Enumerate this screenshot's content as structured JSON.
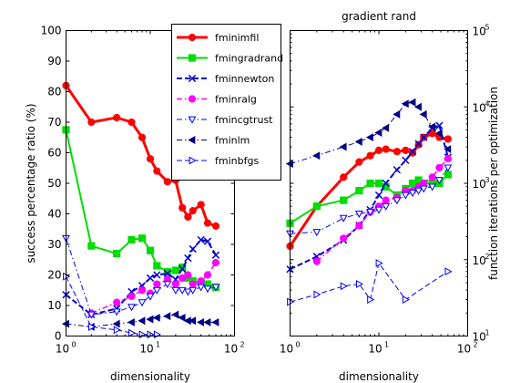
{
  "chart_data": [
    {
      "type": "line",
      "title": "",
      "xlabel": "dimensionality",
      "ylabel": "success percentage ratio (%)",
      "x_scale": "log",
      "xlim": [
        1,
        100
      ],
      "ylim": [
        0,
        100
      ],
      "x_ticks": [
        1,
        10,
        100
      ],
      "y_ticks": [
        0,
        10,
        20,
        30,
        40,
        50,
        60,
        70,
        80,
        90,
        100
      ],
      "y_tick_labels": [
        "0",
        "10",
        "20",
        "30",
        "40",
        "50",
        "60",
        "70",
        "80",
        "90",
        "100"
      ],
      "grid": false,
      "legend_position": "top-right",
      "series": [
        {
          "name": "fminimfil",
          "color": "#ff0000",
          "marker": "circle",
          "dash": "solid",
          "width": 3,
          "x": [
            1,
            2,
            4,
            6,
            8,
            10,
            12,
            16,
            20,
            24,
            28,
            32,
            40,
            48,
            60
          ],
          "y": [
            82,
            70,
            71.5,
            70,
            65,
            58,
            54,
            50.5,
            51,
            42,
            39,
            41,
            43,
            37,
            36
          ]
        },
        {
          "name": "fmingradrand",
          "color": "#00dd00",
          "marker": "square",
          "dash": "solid",
          "width": 2,
          "x": [
            1,
            2,
            4,
            6,
            8,
            10,
            12,
            16,
            20,
            24,
            28,
            32,
            40,
            48,
            60
          ],
          "y": [
            67.5,
            29.5,
            27,
            31.5,
            32,
            28,
            23,
            21,
            21.5,
            22.5,
            19,
            18,
            17.5,
            17,
            16
          ]
        },
        {
          "name": "fminnewton",
          "color": "#0000cc",
          "marker": "x",
          "dash": "dashed",
          "width": 2,
          "x": [
            1,
            2,
            4,
            6,
            8,
            10,
            12,
            16,
            20,
            24,
            28,
            32,
            40,
            48,
            60
          ],
          "y": [
            13.5,
            7,
            9,
            14.5,
            16.5,
            19,
            20,
            20.5,
            18.5,
            22,
            25.5,
            28.5,
            31.5,
            31,
            26.5
          ]
        },
        {
          "name": "fminralg",
          "color": "#ff00ff",
          "marker": "circle",
          "dash": "dashdot",
          "width": 1.5,
          "x": [
            2,
            4,
            6,
            8,
            10,
            12,
            16,
            20,
            24,
            28,
            32,
            40,
            48,
            60
          ],
          "y": [
            7.5,
            11,
            13,
            15,
            14,
            17,
            18.5,
            17,
            19,
            20,
            17,
            18,
            20,
            24
          ]
        },
        {
          "name": "fmincgtrust",
          "color": "#0000ff",
          "marker": "triangle-down",
          "dash": "dashdot",
          "width": 1,
          "x": [
            1,
            2,
            4,
            6,
            8,
            10,
            12,
            16,
            20,
            24,
            28,
            32,
            40,
            48,
            60
          ],
          "y": [
            32,
            7,
            8,
            9.5,
            11,
            13,
            15,
            17,
            15,
            15,
            14.5,
            15,
            16,
            15.5,
            16
          ]
        },
        {
          "name": "fminlm",
          "color": "#000088",
          "marker": "triangle-left",
          "dash": "dashdot",
          "width": 1,
          "x": [
            1,
            2,
            4,
            6,
            8,
            10,
            12,
            16,
            20,
            24,
            28,
            32,
            40,
            48,
            60
          ],
          "y": [
            4,
            3,
            4,
            4.5,
            5,
            5.5,
            6,
            6.5,
            7,
            6,
            5,
            5,
            4.5,
            4.5,
            4.5
          ]
        },
        {
          "name": "fminbfgs",
          "color": "#0000ff",
          "marker": "triangle-right",
          "dash": "dashed",
          "width": 1,
          "x": [
            1,
            2,
            4,
            6,
            8,
            10,
            12
          ],
          "y": [
            19.5,
            3,
            2,
            1,
            0.5,
            0.5,
            0.5
          ]
        }
      ]
    },
    {
      "type": "line",
      "title": "gradient rand",
      "xlabel": "dimensionality",
      "ylabel": "function iterations per optimization",
      "x_scale": "log",
      "y_scale": "log",
      "xlim": [
        1,
        100
      ],
      "ylim": [
        10,
        100000
      ],
      "x_ticks": [
        1,
        10,
        100
      ],
      "y_ticks": [
        10,
        100,
        1000,
        10000,
        100000
      ],
      "grid": false,
      "series": [
        {
          "name": "fminimfil",
          "color": "#ff0000",
          "marker": "circle",
          "dash": "solid",
          "width": 3,
          "x": [
            1,
            2,
            4,
            6,
            8,
            10,
            12,
            16,
            20,
            24,
            28,
            32,
            40,
            48,
            60
          ],
          "y": [
            150,
            500,
            1200,
            1900,
            2300,
            2700,
            2800,
            2600,
            2700,
            2500,
            3200,
            4000,
            4500,
            4000,
            3800
          ]
        },
        {
          "name": "fmingradrand",
          "color": "#00dd00",
          "marker": "square",
          "dash": "solid",
          "width": 2,
          "x": [
            1,
            2,
            4,
            6,
            8,
            10,
            12,
            16,
            20,
            24,
            28,
            32,
            40,
            48,
            60
          ],
          "y": [
            300,
            500,
            600,
            800,
            1000,
            1000,
            900,
            700,
            850,
            1000,
            1100,
            1000,
            1000,
            1000,
            1300
          ]
        },
        {
          "name": "fminnewton",
          "color": "#0000cc",
          "marker": "x",
          "dash": "dashed",
          "width": 2,
          "x": [
            1,
            2,
            4,
            6,
            8,
            10,
            12,
            16,
            20,
            24,
            28,
            32,
            40,
            48,
            60
          ],
          "y": [
            75,
            110,
            180,
            280,
            450,
            700,
            1000,
            1500,
            2000,
            2600,
            3300,
            4000,
            5300,
            5700,
            2200
          ]
        },
        {
          "name": "fminralg",
          "color": "#ff00ff",
          "marker": "circle",
          "dash": "dashdot",
          "width": 1.5,
          "x": [
            2,
            4,
            6,
            8,
            10,
            12,
            16,
            20,
            24,
            28,
            32,
            40,
            48,
            60
          ],
          "y": [
            95,
            190,
            280,
            420,
            500,
            600,
            650,
            800,
            800,
            900,
            1000,
            1200,
            1600,
            2100
          ]
        },
        {
          "name": "fmincgtrust",
          "color": "#0000ff",
          "marker": "triangle-down",
          "dash": "dashdot",
          "width": 1,
          "x": [
            1,
            2,
            4,
            6,
            8,
            10,
            12,
            16,
            20,
            24,
            28,
            32,
            40,
            48,
            60
          ],
          "y": [
            220,
            230,
            350,
            400,
            420,
            450,
            500,
            600,
            700,
            750,
            800,
            850,
            900,
            1100,
            1600
          ]
        },
        {
          "name": "fminlm",
          "color": "#000088",
          "marker": "triangle-left",
          "dash": "dashdot",
          "width": 1,
          "x": [
            1,
            2,
            4,
            6,
            8,
            10,
            12,
            16,
            20,
            24,
            28,
            32,
            40,
            48,
            60
          ],
          "y": [
            1800,
            2300,
            3000,
            3500,
            4000,
            4600,
            5300,
            8000,
            11000,
            11500,
            10000,
            8000,
            5500,
            4500,
            2800
          ]
        },
        {
          "name": "fminbfgs",
          "color": "#0000ff",
          "marker": "triangle-right",
          "dash": "dashed",
          "width": 1,
          "x": [
            1,
            2,
            4,
            6,
            8,
            10,
            20,
            60
          ],
          "y": [
            28,
            35,
            45,
            48,
            30,
            90,
            30,
            70
          ]
        }
      ]
    }
  ]
}
